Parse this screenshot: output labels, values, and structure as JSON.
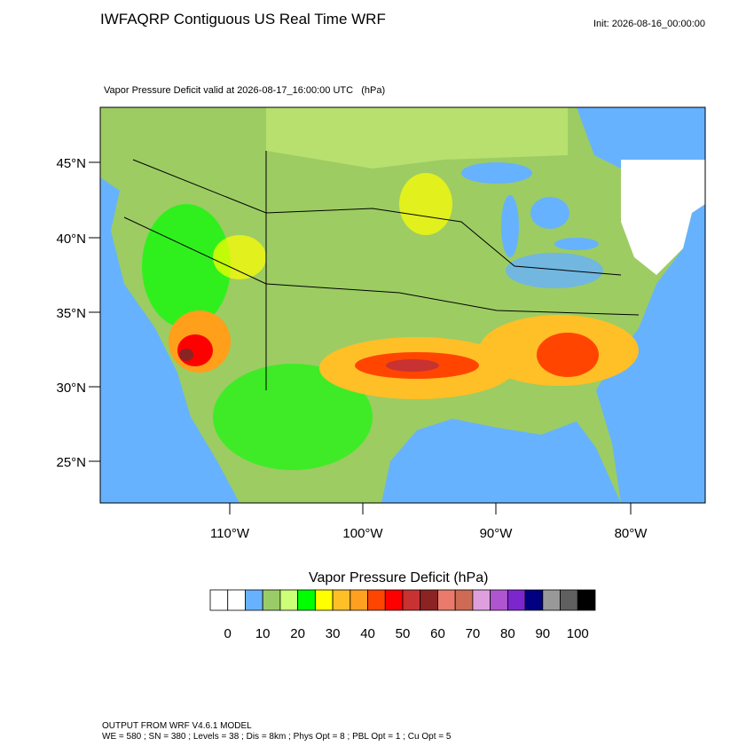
{
  "header": {
    "title": "IWFAQRP Contiguous US Real Time WRF",
    "init": "Init: 2026-08-16_00:00:00"
  },
  "map": {
    "subtitle": "Vapor Pressure Deficit valid at 2026-08-17_16:00:00 UTC   (hPa)",
    "lat_labels": [
      "45°N",
      "40°N",
      "35°N",
      "30°N",
      "25°N"
    ],
    "lon_labels": [
      "110°W",
      "100°W",
      "90°W",
      "80°W"
    ]
  },
  "colorbar": {
    "title": "Vapor Pressure Deficit  (hPa)",
    "colors": [
      "#ffffff",
      "#ffffff",
      "#66b2ff",
      "#99cc66",
      "#ccff77",
      "#00ff00",
      "#ffff00",
      "#ffbf26",
      "#ffa020",
      "#ff4500",
      "#ff0000",
      "#c83232",
      "#8b2323",
      "#e97a6c",
      "#cd6b55",
      "#dda0dd",
      "#b055d0",
      "#7c26cd",
      "#000080",
      "#999999",
      "#606060",
      "#000000"
    ],
    "labels": [
      0,
      10,
      20,
      30,
      40,
      50,
      60,
      70,
      80,
      90,
      100
    ]
  },
  "footer": {
    "lines": [
      "OUTPUT FROM WRF V4.6.1 MODEL",
      "WE = 580 ; SN = 380 ; Levels = 38 ; Dis = 8km ; Phys Opt = 8 ; PBL Opt = 1 ; Cu Opt = 5"
    ]
  }
}
